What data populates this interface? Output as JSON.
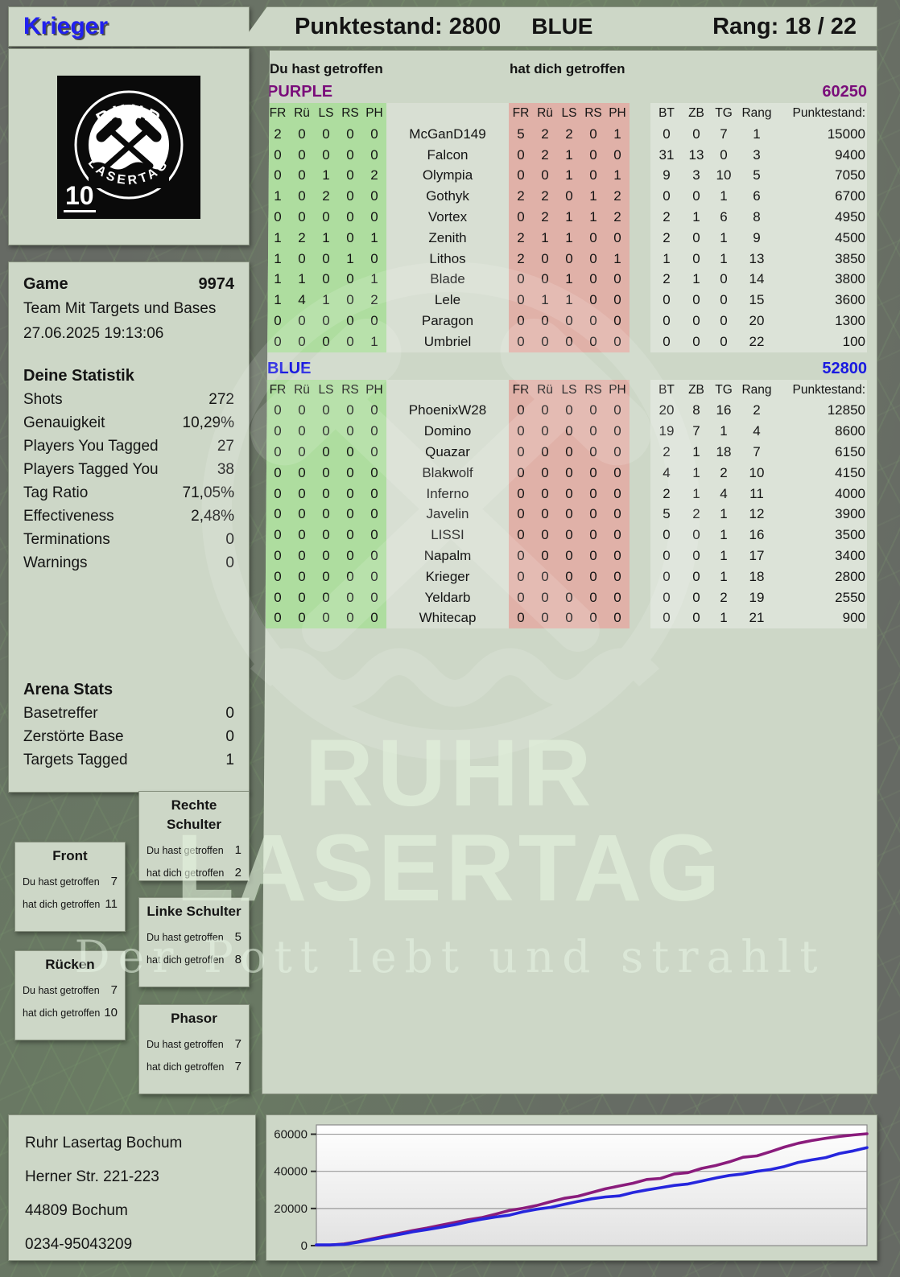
{
  "header": {
    "player_name": "Krieger",
    "score_label": "Punktestand: 2800",
    "team_label": "BLUE",
    "rank_label": "Rang: 18 / 22"
  },
  "logo": {
    "top_text": "RUHR",
    "bottom_text": "LASERTAG",
    "badge_number": "10"
  },
  "game_info": {
    "title": "Game",
    "number": "9974",
    "mode": "Team Mit Targets und Bases",
    "datetime": "27.06.2025 19:13:06"
  },
  "your_stats": {
    "title": "Deine Statistik",
    "rows": [
      {
        "label": "Shots",
        "value": "272"
      },
      {
        "label": "Genauigkeit",
        "value": "10,29%"
      },
      {
        "label": "Players You Tagged",
        "value": "27"
      },
      {
        "label": "Players Tagged You",
        "value": "38"
      },
      {
        "label": "Tag Ratio",
        "value": "71,05%"
      },
      {
        "label": "Effectiveness",
        "value": "2,48%"
      },
      {
        "label": "Terminations",
        "value": "0"
      },
      {
        "label": "Warnings",
        "value": "0"
      }
    ]
  },
  "arena_stats": {
    "title": "Arena Stats",
    "rows": [
      {
        "label": "Basetreffer",
        "value": "0"
      },
      {
        "label": "Zerstörte Base",
        "value": "0"
      },
      {
        "label": "Targets Tagged",
        "value": "1"
      }
    ]
  },
  "columns": {
    "hit_you_made": "Du hast getroffen",
    "hit_on_you": "hat dich getroffen",
    "green_headers": [
      "FR",
      "Rü",
      "LS",
      "RS",
      "PH"
    ],
    "red_headers": [
      "FR",
      "Rü",
      "LS",
      "RS",
      "PH"
    ],
    "right_headers": [
      "BT",
      "ZB",
      "TG",
      "Rang",
      "Punktestand:"
    ]
  },
  "teams": [
    {
      "name": "PURPLE",
      "total": "60250",
      "color": "#7a0d7a",
      "players": [
        {
          "name": "McGanD149",
          "you_hit": [
            2,
            0,
            0,
            0,
            0
          ],
          "hit_you": [
            5,
            2,
            2,
            0,
            1
          ],
          "bt": 0,
          "zb": 0,
          "tg": 7,
          "rang": 1,
          "punktestand": "15000"
        },
        {
          "name": "Falcon",
          "you_hit": [
            0,
            0,
            0,
            0,
            0
          ],
          "hit_you": [
            0,
            2,
            1,
            0,
            0
          ],
          "bt": 31,
          "zb": 13,
          "tg": 0,
          "rang": 3,
          "punktestand": "9400"
        },
        {
          "name": "Olympia",
          "you_hit": [
            0,
            0,
            1,
            0,
            2
          ],
          "hit_you": [
            0,
            0,
            1,
            0,
            1
          ],
          "bt": 9,
          "zb": 3,
          "tg": 10,
          "rang": 5,
          "punktestand": "7050"
        },
        {
          "name": "Gothyk",
          "you_hit": [
            1,
            0,
            2,
            0,
            0
          ],
          "hit_you": [
            2,
            2,
            0,
            1,
            2
          ],
          "bt": 0,
          "zb": 0,
          "tg": 1,
          "rang": 6,
          "punktestand": "6700"
        },
        {
          "name": "Vortex",
          "you_hit": [
            0,
            0,
            0,
            0,
            0
          ],
          "hit_you": [
            0,
            2,
            1,
            1,
            2
          ],
          "bt": 2,
          "zb": 1,
          "tg": 6,
          "rang": 8,
          "punktestand": "4950"
        },
        {
          "name": "Zenith",
          "you_hit": [
            1,
            2,
            1,
            0,
            1
          ],
          "hit_you": [
            2,
            1,
            1,
            0,
            0
          ],
          "bt": 2,
          "zb": 0,
          "tg": 1,
          "rang": 9,
          "punktestand": "4500"
        },
        {
          "name": "Lithos",
          "you_hit": [
            1,
            0,
            0,
            1,
            0
          ],
          "hit_you": [
            2,
            0,
            0,
            0,
            1
          ],
          "bt": 1,
          "zb": 0,
          "tg": 1,
          "rang": 13,
          "punktestand": "3850"
        },
        {
          "name": "Blade",
          "you_hit": [
            1,
            1,
            0,
            0,
            1
          ],
          "hit_you": [
            0,
            0,
            1,
            0,
            0
          ],
          "bt": 2,
          "zb": 1,
          "tg": 0,
          "rang": 14,
          "punktestand": "3800"
        },
        {
          "name": "Lele",
          "you_hit": [
            1,
            4,
            1,
            0,
            2
          ],
          "hit_you": [
            0,
            1,
            1,
            0,
            0
          ],
          "bt": 0,
          "zb": 0,
          "tg": 0,
          "rang": 15,
          "punktestand": "3600"
        },
        {
          "name": "Paragon",
          "you_hit": [
            0,
            0,
            0,
            0,
            0
          ],
          "hit_you": [
            0,
            0,
            0,
            0,
            0
          ],
          "bt": 0,
          "zb": 0,
          "tg": 0,
          "rang": 20,
          "punktestand": "1300"
        },
        {
          "name": "Umbriel",
          "you_hit": [
            0,
            0,
            0,
            0,
            1
          ],
          "hit_you": [
            0,
            0,
            0,
            0,
            0
          ],
          "bt": 0,
          "zb": 0,
          "tg": 0,
          "rang": 22,
          "punktestand": "100"
        }
      ]
    },
    {
      "name": "BLUE",
      "total": "52800",
      "color": "#1a1ae0",
      "players": [
        {
          "name": "PhoenixW28",
          "you_hit": [
            0,
            0,
            0,
            0,
            0
          ],
          "hit_you": [
            0,
            0,
            0,
            0,
            0
          ],
          "bt": 20,
          "zb": 8,
          "tg": 16,
          "rang": 2,
          "punktestand": "12850"
        },
        {
          "name": "Domino",
          "you_hit": [
            0,
            0,
            0,
            0,
            0
          ],
          "hit_you": [
            0,
            0,
            0,
            0,
            0
          ],
          "bt": 19,
          "zb": 7,
          "tg": 1,
          "rang": 4,
          "punktestand": "8600"
        },
        {
          "name": "Quazar",
          "you_hit": [
            0,
            0,
            0,
            0,
            0
          ],
          "hit_you": [
            0,
            0,
            0,
            0,
            0
          ],
          "bt": 2,
          "zb": 1,
          "tg": 18,
          "rang": 7,
          "punktestand": "6150"
        },
        {
          "name": "Blakwolf",
          "you_hit": [
            0,
            0,
            0,
            0,
            0
          ],
          "hit_you": [
            0,
            0,
            0,
            0,
            0
          ],
          "bt": 4,
          "zb": 1,
          "tg": 2,
          "rang": 10,
          "punktestand": "4150"
        },
        {
          "name": "Inferno",
          "you_hit": [
            0,
            0,
            0,
            0,
            0
          ],
          "hit_you": [
            0,
            0,
            0,
            0,
            0
          ],
          "bt": 2,
          "zb": 1,
          "tg": 4,
          "rang": 11,
          "punktestand": "4000"
        },
        {
          "name": "Javelin",
          "you_hit": [
            0,
            0,
            0,
            0,
            0
          ],
          "hit_you": [
            0,
            0,
            0,
            0,
            0
          ],
          "bt": 5,
          "zb": 2,
          "tg": 1,
          "rang": 12,
          "punktestand": "3900"
        },
        {
          "name": "LISSI",
          "you_hit": [
            0,
            0,
            0,
            0,
            0
          ],
          "hit_you": [
            0,
            0,
            0,
            0,
            0
          ],
          "bt": 0,
          "zb": 0,
          "tg": 1,
          "rang": 16,
          "punktestand": "3500"
        },
        {
          "name": "Napalm",
          "you_hit": [
            0,
            0,
            0,
            0,
            0
          ],
          "hit_you": [
            0,
            0,
            0,
            0,
            0
          ],
          "bt": 0,
          "zb": 0,
          "tg": 1,
          "rang": 17,
          "punktestand": "3400"
        },
        {
          "name": "Krieger",
          "you_hit": [
            0,
            0,
            0,
            0,
            0
          ],
          "hit_you": [
            0,
            0,
            0,
            0,
            0
          ],
          "bt": 0,
          "zb": 0,
          "tg": 1,
          "rang": 18,
          "punktestand": "2800"
        },
        {
          "name": "Yeldarb",
          "you_hit": [
            0,
            0,
            0,
            0,
            0
          ],
          "hit_you": [
            0,
            0,
            0,
            0,
            0
          ],
          "bt": 0,
          "zb": 0,
          "tg": 2,
          "rang": 19,
          "punktestand": "2550"
        },
        {
          "name": "Whitecap",
          "you_hit": [
            0,
            0,
            0,
            0,
            0
          ],
          "hit_you": [
            0,
            0,
            0,
            0,
            0
          ],
          "bt": 0,
          "zb": 0,
          "tg": 1,
          "rang": 21,
          "punktestand": "900"
        }
      ]
    }
  ],
  "body_part_labels": {
    "you": "Du hast getroffen",
    "them": "hat dich getroffen"
  },
  "body_parts": [
    {
      "key": "rechte-schulter",
      "title": "Rechte Schulter",
      "you_hit": "1",
      "hit_you": "2"
    },
    {
      "key": "front",
      "title": "Front",
      "you_hit": "7",
      "hit_you": "11"
    },
    {
      "key": "linke-schulter",
      "title": "Linke Schulter",
      "you_hit": "5",
      "hit_you": "8"
    },
    {
      "key": "ruecken",
      "title": "Rücken",
      "you_hit": "7",
      "hit_you": "10"
    },
    {
      "key": "phasor",
      "title": "Phasor",
      "you_hit": "7",
      "hit_you": "7"
    }
  ],
  "address": {
    "lines": [
      "Ruhr Lasertag Bochum",
      "Herner Str. 221-223",
      "44809 Bochum",
      "0234-95043209"
    ]
  },
  "watermark": {
    "line1": "RUHR",
    "line2": "LASERTAG",
    "tagline": "Der Pott lebt und strahlt"
  },
  "chart_data": {
    "type": "line",
    "title": "",
    "xlabel": "",
    "ylabel": "",
    "ylim": [
      0,
      65000
    ],
    "yticks": [
      0,
      20000,
      40000,
      60000
    ],
    "grid": true,
    "legend": "none",
    "series": [
      {
        "name": "PURPLE",
        "color": "#8a1c7c",
        "values": [
          300,
          300,
          900,
          2100,
          3600,
          5100,
          6600,
          8100,
          9400,
          10900,
          12400,
          13900,
          15100,
          16900,
          18900,
          20100,
          21600,
          23600,
          25500,
          26600,
          28600,
          30600,
          32100,
          33600,
          35600,
          36200,
          38600,
          39300,
          41600,
          43100,
          45100,
          47600,
          48300,
          50600,
          53100,
          55100,
          56600,
          57800,
          58800,
          59600,
          60250
        ]
      },
      {
        "name": "BLUE",
        "color": "#2626dd",
        "values": [
          400,
          400,
          600,
          1800,
          3200,
          4600,
          6000,
          7400,
          8600,
          9800,
          11200,
          12800,
          14200,
          15400,
          16400,
          18200,
          19600,
          20600,
          22200,
          23800,
          25200,
          26200,
          26800,
          28600,
          30000,
          31200,
          32400,
          33200,
          34800,
          36400,
          37800,
          38600,
          40000,
          41000,
          42600,
          44800,
          46200,
          47400,
          49600,
          51000,
          52800
        ]
      }
    ]
  }
}
